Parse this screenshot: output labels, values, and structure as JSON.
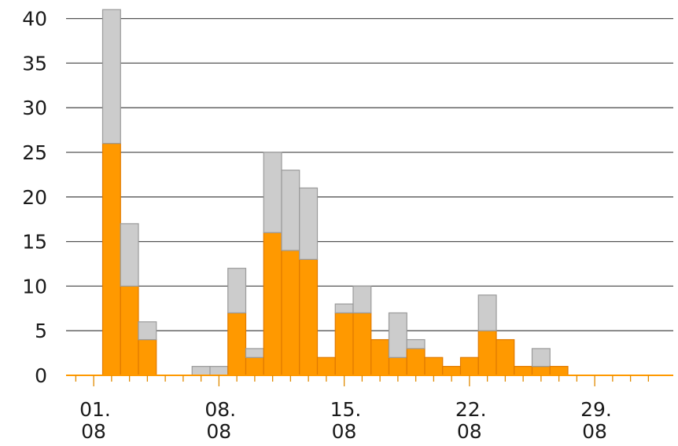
{
  "chart_data": {
    "type": "bar",
    "stacked": true,
    "x": [
      "31.07",
      "01.08",
      "02.08",
      "03.08",
      "04.08",
      "05.08",
      "06.08",
      "07.08",
      "08.08",
      "09.08",
      "10.08",
      "11.08",
      "12.08",
      "13.08",
      "14.08",
      "15.08",
      "16.08",
      "17.08",
      "18.08",
      "19.08",
      "20.08",
      "21.08",
      "22.08",
      "23.08",
      "24.08",
      "25.08",
      "26.08",
      "27.08",
      "28.08",
      "29.08",
      "30.08",
      "31.08",
      "01.09"
    ],
    "series": [
      {
        "color": "#ff9900",
        "values": [
          0,
          0,
          26,
          10,
          4,
          0,
          0,
          0,
          0,
          7,
          2,
          16,
          14,
          13,
          2,
          7,
          7,
          4,
          2,
          3,
          2,
          1,
          2,
          5,
          4,
          1,
          1,
          1,
          0,
          0,
          0,
          0,
          0
        ]
      },
      {
        "color": "#cccccc",
        "values": [
          0,
          0,
          15,
          7,
          2,
          0,
          0,
          1,
          1,
          5,
          1,
          9,
          9,
          8,
          0,
          1,
          3,
          0,
          5,
          1,
          0,
          0,
          0,
          4,
          0,
          0,
          2,
          0,
          0,
          0,
          0,
          0,
          0
        ]
      }
    ],
    "yticks": [
      "0",
      "5",
      "10",
      "15",
      "20",
      "25",
      "30",
      "35",
      "40"
    ],
    "ylim": [
      0,
      42
    ],
    "xticks": [
      {
        "line1": "01.",
        "line2": "08",
        "x": "01.08"
      },
      {
        "line1": "08.",
        "line2": "08",
        "x": "08.08"
      },
      {
        "line1": "15.",
        "line2": "08",
        "x": "15.08"
      },
      {
        "line1": "22.",
        "line2": "08",
        "x": "22.08"
      },
      {
        "line1": "29.",
        "line2": "08",
        "x": "29.08"
      }
    ],
    "grid": true,
    "legend": "none"
  }
}
